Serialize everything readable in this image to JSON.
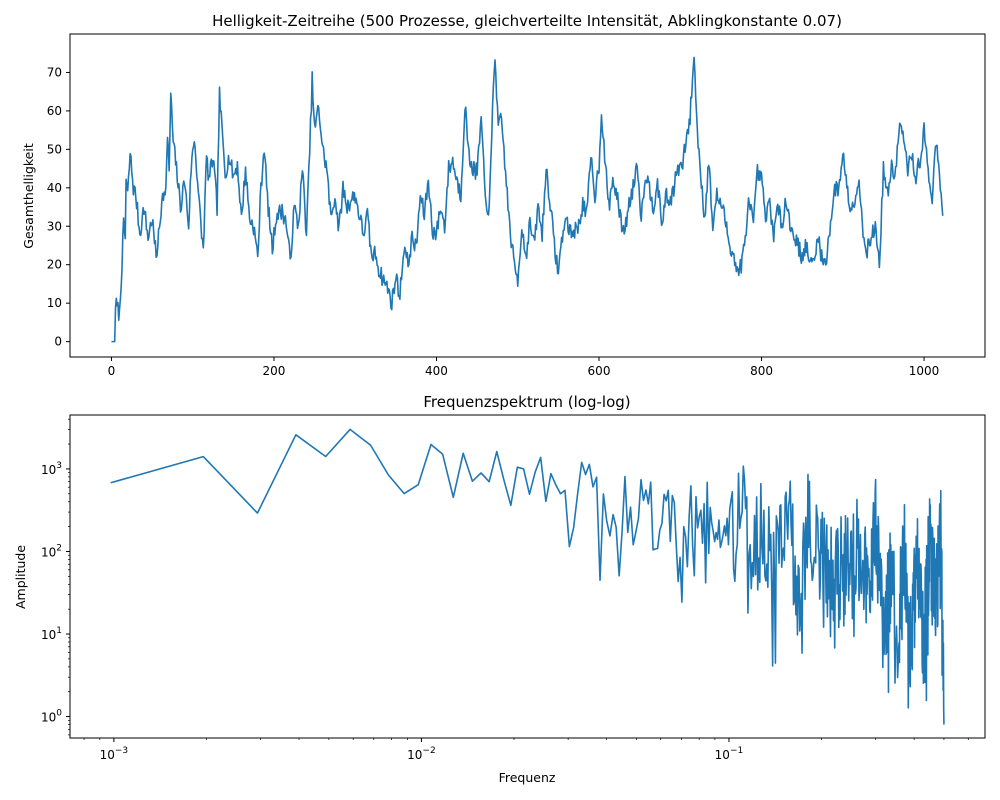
{
  "chart_data": [
    {
      "type": "line",
      "title": "Helligkeit-Zeitreihe (500 Prozesse, gleichverteilte Intensität, Abklingkonstante 0.07)",
      "xlabel": "",
      "ylabel": "Gesamthelligkeit",
      "xlim": [
        -51,
        1075
      ],
      "ylim": [
        -4,
        80
      ],
      "xticks": [
        0,
        200,
        400,
        600,
        800,
        1000
      ],
      "yticks": [
        0,
        10,
        20,
        30,
        40,
        50,
        60,
        70
      ],
      "xscale": "linear",
      "yscale": "linear",
      "grid": false,
      "color": "#1f77b4",
      "num_points": 1024,
      "keypoints": [
        [
          0,
          0
        ],
        [
          4,
          0
        ],
        [
          5,
          10
        ],
        [
          10,
          7
        ],
        [
          13,
          21
        ],
        [
          15,
          30
        ],
        [
          17,
          27
        ],
        [
          18,
          42
        ],
        [
          20,
          38
        ],
        [
          23,
          49
        ],
        [
          27,
          40
        ],
        [
          30,
          38
        ],
        [
          35,
          28
        ],
        [
          40,
          35
        ],
        [
          45,
          27
        ],
        [
          50,
          32
        ],
        [
          55,
          22
        ],
        [
          60,
          31
        ],
        [
          63,
          40
        ],
        [
          66,
          37
        ],
        [
          69,
          52
        ],
        [
          71,
          45
        ],
        [
          73,
          64
        ],
        [
          76,
          52
        ],
        [
          80,
          45
        ],
        [
          85,
          35
        ],
        [
          90,
          42
        ],
        [
          95,
          30
        ],
        [
          98,
          45
        ],
        [
          102,
          53
        ],
        [
          106,
          42
        ],
        [
          110,
          30
        ],
        [
          113,
          24
        ],
        [
          117,
          48
        ],
        [
          120,
          42
        ],
        [
          125,
          48
        ],
        [
          130,
          35
        ],
        [
          133,
          64
        ],
        [
          136,
          55
        ],
        [
          140,
          44
        ],
        [
          145,
          48
        ],
        [
          150,
          43
        ],
        [
          155,
          46
        ],
        [
          160,
          32
        ],
        [
          165,
          45
        ],
        [
          170,
          32
        ],
        [
          175,
          30
        ],
        [
          180,
          22
        ],
        [
          184,
          40
        ],
        [
          188,
          51
        ],
        [
          192,
          37
        ],
        [
          198,
          24
        ],
        [
          203,
          33
        ],
        [
          210,
          34
        ],
        [
          215,
          31
        ],
        [
          220,
          21
        ],
        [
          225,
          35
        ],
        [
          230,
          30
        ],
        [
          235,
          45
        ],
        [
          240,
          28
        ],
        [
          244,
          50
        ],
        [
          247,
          68
        ],
        [
          250,
          55
        ],
        [
          255,
          61
        ],
        [
          260,
          50
        ],
        [
          265,
          45
        ],
        [
          270,
          32
        ],
        [
          275,
          38
        ],
        [
          280,
          29
        ],
        [
          285,
          40
        ],
        [
          290,
          35
        ],
        [
          295,
          37
        ],
        [
          300,
          38
        ],
        [
          305,
          33
        ],
        [
          310,
          28
        ],
        [
          315,
          33
        ],
        [
          320,
          22
        ],
        [
          325,
          23
        ],
        [
          330,
          18
        ],
        [
          335,
          16
        ],
        [
          340,
          14
        ],
        [
          345,
          10
        ],
        [
          350,
          17
        ],
        [
          355,
          12
        ],
        [
          360,
          25
        ],
        [
          365,
          20
        ],
        [
          370,
          27
        ],
        [
          375,
          24
        ],
        [
          380,
          38
        ],
        [
          385,
          33
        ],
        [
          390,
          42
        ],
        [
          395,
          29
        ],
        [
          400,
          28
        ],
        [
          405,
          35
        ],
        [
          410,
          30
        ],
        [
          415,
          45
        ],
        [
          420,
          47
        ],
        [
          425,
          42
        ],
        [
          430,
          38
        ],
        [
          435,
          62
        ],
        [
          440,
          48
        ],
        [
          445,
          45
        ],
        [
          450,
          44
        ],
        [
          455,
          58
        ],
        [
          460,
          37
        ],
        [
          465,
          34
        ],
        [
          470,
          66
        ],
        [
          472,
          75
        ],
        [
          476,
          55
        ],
        [
          480,
          58
        ],
        [
          485,
          44
        ],
        [
          490,
          30
        ],
        [
          495,
          21
        ],
        [
          500,
          16
        ],
        [
          505,
          30
        ],
        [
          510,
          22
        ],
        [
          515,
          31
        ],
        [
          520,
          25
        ],
        [
          525,
          35
        ],
        [
          530,
          28
        ],
        [
          535,
          45
        ],
        [
          540,
          36
        ],
        [
          545,
          25
        ],
        [
          550,
          18
        ],
        [
          555,
          28
        ],
        [
          560,
          32
        ],
        [
          565,
          28
        ],
        [
          570,
          29
        ],
        [
          575,
          30
        ],
        [
          580,
          36
        ],
        [
          585,
          33
        ],
        [
          590,
          48
        ],
        [
          595,
          38
        ],
        [
          600,
          46
        ],
        [
          603,
          60
        ],
        [
          607,
          48
        ],
        [
          612,
          35
        ],
        [
          617,
          42
        ],
        [
          622,
          38
        ],
        [
          627,
          31
        ],
        [
          632,
          29
        ],
        [
          637,
          36
        ],
        [
          642,
          40
        ],
        [
          647,
          47
        ],
        [
          652,
          32
        ],
        [
          657,
          44
        ],
        [
          662,
          40
        ],
        [
          667,
          35
        ],
        [
          672,
          42
        ],
        [
          677,
          30
        ],
        [
          682,
          38
        ],
        [
          687,
          36
        ],
        [
          692,
          40
        ],
        [
          697,
          45
        ],
        [
          702,
          45
        ],
        [
          707,
          52
        ],
        [
          712,
          58
        ],
        [
          717,
          75
        ],
        [
          720,
          58
        ],
        [
          725,
          44
        ],
        [
          730,
          32
        ],
        [
          735,
          47
        ],
        [
          740,
          30
        ],
        [
          745,
          38
        ],
        [
          750,
          36
        ],
        [
          755,
          32
        ],
        [
          760,
          26
        ],
        [
          765,
          23
        ],
        [
          770,
          18
        ],
        [
          775,
          20
        ],
        [
          780,
          26
        ],
        [
          785,
          38
        ],
        [
          790,
          30
        ],
        [
          795,
          44
        ],
        [
          800,
          42
        ],
        [
          805,
          32
        ],
        [
          810,
          36
        ],
        [
          815,
          28
        ],
        [
          820,
          35
        ],
        [
          825,
          30
        ],
        [
          830,
          38
        ],
        [
          835,
          30
        ],
        [
          840,
          28
        ],
        [
          845,
          25
        ],
        [
          850,
          22
        ],
        [
          855,
          25
        ],
        [
          860,
          20
        ],
        [
          865,
          21
        ],
        [
          870,
          28
        ],
        [
          875,
          20
        ],
        [
          880,
          22
        ],
        [
          885,
          31
        ],
        [
          890,
          40
        ],
        [
          895,
          39
        ],
        [
          900,
          50
        ],
        [
          905,
          40
        ],
        [
          910,
          34
        ],
        [
          915,
          38
        ],
        [
          920,
          42
        ],
        [
          925,
          28
        ],
        [
          930,
          24
        ],
        [
          935,
          27
        ],
        [
          940,
          30
        ],
        [
          945,
          20
        ],
        [
          950,
          45
        ],
        [
          955,
          38
        ],
        [
          960,
          45
        ],
        [
          965,
          44
        ],
        [
          970,
          57
        ],
        [
          975,
          52
        ],
        [
          980,
          45
        ],
        [
          985,
          48
        ],
        [
          990,
          43
        ],
        [
          995,
          47
        ],
        [
          1000,
          55
        ],
        [
          1005,
          44
        ],
        [
          1010,
          38
        ],
        [
          1015,
          52
        ],
        [
          1020,
          40
        ],
        [
          1023,
          33
        ]
      ]
    },
    {
      "type": "line",
      "title": "Frequenzspektrum (log-log)",
      "xlabel": "Frequenz",
      "ylabel": "Amplitude",
      "xscale": "log",
      "yscale": "log",
      "xlim": [
        0.00072,
        0.68
      ],
      "ylim": [
        0.55,
        4500
      ],
      "xticks": [
        0.001,
        0.01,
        0.1
      ],
      "xtick_labels": [
        [
          "10",
          "−3"
        ],
        [
          "10",
          "−2"
        ],
        [
          "10",
          "−1"
        ]
      ],
      "yticks": [
        1,
        10,
        100,
        1000
      ],
      "ytick_labels": [
        [
          "10",
          "0"
        ],
        [
          "10",
          "1"
        ],
        [
          "10",
          "2"
        ],
        [
          "10",
          "3"
        ]
      ],
      "grid": false,
      "color": "#1f77b4",
      "num_points": 512,
      "frequency_step": 0.0009765625,
      "keypoints": [
        [
          0.00098,
          680
        ],
        [
          0.00195,
          1420
        ],
        [
          0.0029,
          270
        ],
        [
          0.0039,
          2600
        ],
        [
          0.0049,
          1400
        ],
        [
          0.0059,
          3100
        ],
        [
          0.0068,
          2000
        ],
        [
          0.0078,
          850
        ],
        [
          0.0088,
          500
        ],
        [
          0.0098,
          650
        ],
        [
          0.0107,
          2000
        ],
        [
          0.0117,
          1550
        ],
        [
          0.0127,
          450
        ],
        [
          0.0137,
          1600
        ],
        [
          0.0147,
          680
        ],
        [
          0.0156,
          900
        ],
        [
          0.0166,
          700
        ],
        [
          0.0176,
          1650
        ],
        [
          0.0186,
          700
        ],
        [
          0.0195,
          350
        ],
        [
          0.0205,
          1050
        ],
        [
          0.0215,
          1000
        ],
        [
          0.0225,
          480
        ],
        [
          0.0234,
          900
        ],
        [
          0.0244,
          1400
        ],
        [
          0.0254,
          400
        ],
        [
          0.0264,
          900
        ],
        [
          0.0273,
          650
        ],
        [
          0.0283,
          500
        ],
        [
          0.0293,
          550
        ],
        [
          0.0303,
          110
        ],
        [
          0.0313,
          200
        ],
        [
          0.0322,
          500
        ],
        [
          0.0332,
          1200
        ],
        [
          0.0342,
          850
        ],
        [
          0.0352,
          1150
        ],
        [
          0.0361,
          600
        ],
        [
          0.0371,
          800
        ],
        [
          0.0381,
          300
        ],
        [
          0.0391,
          250
        ],
        [
          0.04,
          600
        ],
        [
          0.042,
          550
        ],
        [
          0.044,
          95
        ],
        [
          0.046,
          700
        ],
        [
          0.048,
          230
        ],
        [
          0.05,
          300
        ],
        [
          0.053,
          420
        ],
        [
          0.056,
          300
        ],
        [
          0.06,
          150
        ],
        [
          0.065,
          330
        ],
        [
          0.07,
          50
        ],
        [
          0.075,
          350
        ],
        [
          0.08,
          200
        ],
        [
          0.09,
          300
        ],
        [
          0.1,
          110
        ],
        [
          0.11,
          300
        ],
        [
          0.12,
          90
        ],
        [
          0.13,
          200
        ],
        [
          0.14,
          40
        ],
        [
          0.15,
          250
        ],
        [
          0.16,
          130
        ],
        [
          0.17,
          25
        ],
        [
          0.18,
          180
        ],
        [
          0.2,
          100
        ],
        [
          0.22,
          30
        ],
        [
          0.25,
          150
        ],
        [
          0.28,
          50
        ],
        [
          0.3,
          200
        ],
        [
          0.32,
          12
        ],
        [
          0.34,
          100
        ],
        [
          0.35,
          2.3
        ],
        [
          0.37,
          150
        ],
        [
          0.39,
          6
        ],
        [
          0.41,
          80
        ],
        [
          0.43,
          7
        ],
        [
          0.45,
          140
        ],
        [
          0.47,
          20
        ],
        [
          0.49,
          130
        ],
        [
          0.5,
          0.8
        ]
      ]
    }
  ]
}
